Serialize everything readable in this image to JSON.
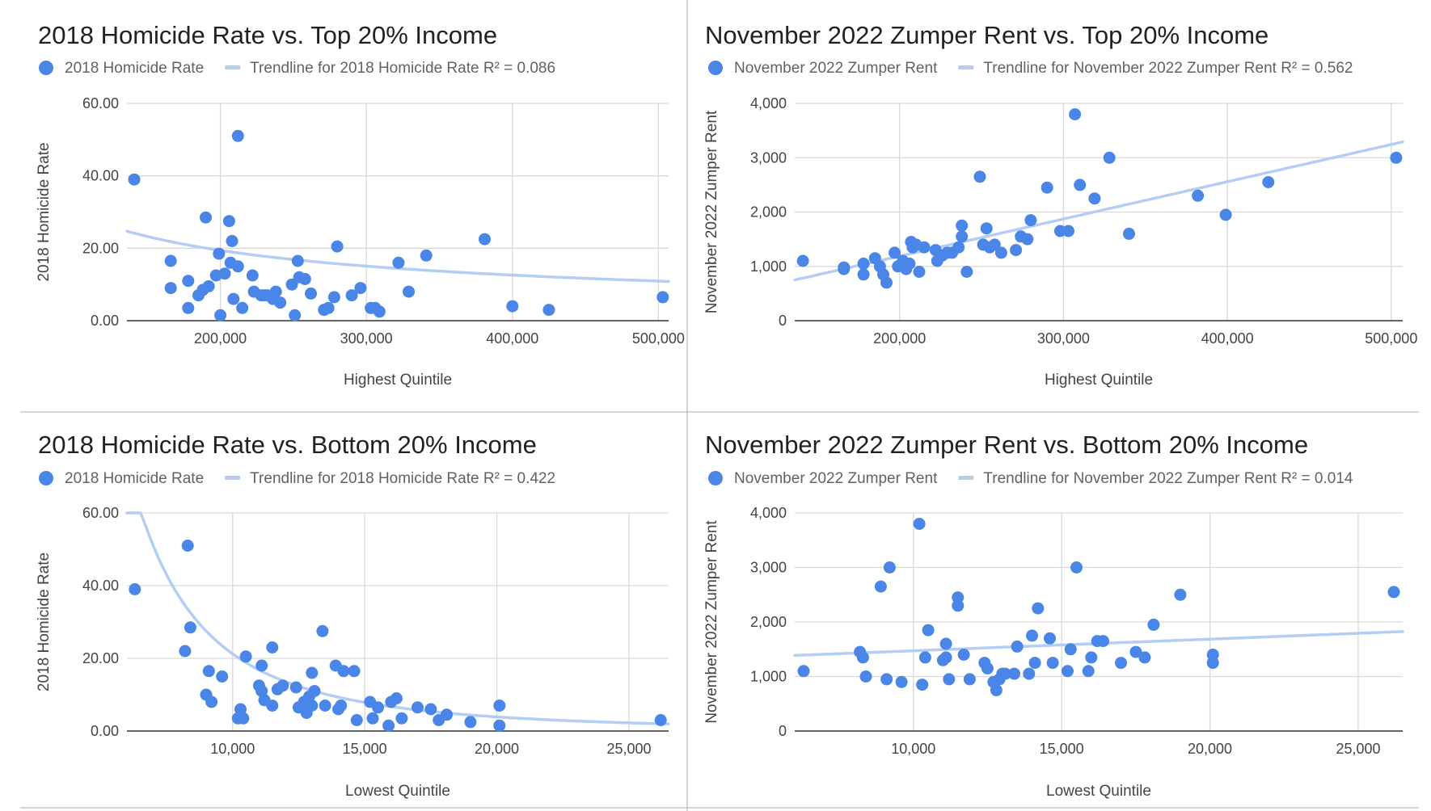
{
  "colors": {
    "point": "#4a86e8",
    "trend": "#b3cdf5"
  },
  "chart_data": [
    {
      "type": "scatter",
      "title": "2018 Homicide Rate vs. Top 20% Income",
      "xlabel": "Highest Quintile",
      "ylabel": "2018 Homicide Rate",
      "series_name": "2018 Homicide Rate",
      "trend_label": "Trendline for 2018 Homicide Rate R² = 0.086",
      "xlim": [
        136000,
        507000
      ],
      "ylim": [
        0,
        60
      ],
      "xticks": [
        200000,
        300000,
        400000,
        500000
      ],
      "xtick_labels": [
        "200,000",
        "300,000",
        "400,000",
        "500,000"
      ],
      "yticks": [
        0,
        20,
        40,
        60
      ],
      "ytick_labels": [
        "0.00",
        "20.00",
        "40.00",
        "60.00"
      ],
      "trend": {
        "kind": "power",
        "a": 40430,
        "b": -0.626
      },
      "points": [
        [
          141000,
          39
        ],
        [
          166000,
          16.5
        ],
        [
          166000,
          9
        ],
        [
          178000,
          3.5
        ],
        [
          178000,
          11
        ],
        [
          185000,
          7
        ],
        [
          188000,
          8.5
        ],
        [
          190000,
          28.5
        ],
        [
          192000,
          9.5
        ],
        [
          197000,
          12.5
        ],
        [
          199000,
          18.5
        ],
        [
          200000,
          1.5
        ],
        [
          203000,
          13
        ],
        [
          206000,
          27.5
        ],
        [
          207000,
          16
        ],
        [
          208000,
          22
        ],
        [
          209000,
          6
        ],
        [
          212000,
          51
        ],
        [
          212000,
          15
        ],
        [
          215000,
          3.5
        ],
        [
          222000,
          12.5
        ],
        [
          223000,
          8
        ],
        [
          228000,
          7
        ],
        [
          230000,
          7
        ],
        [
          232000,
          7
        ],
        [
          236000,
          6
        ],
        [
          238000,
          8
        ],
        [
          241000,
          5
        ],
        [
          249000,
          10
        ],
        [
          251000,
          1.5
        ],
        [
          253000,
          16.5
        ],
        [
          254000,
          12
        ],
        [
          258000,
          11.5
        ],
        [
          262000,
          7.5
        ],
        [
          271000,
          3
        ],
        [
          274000,
          3.5
        ],
        [
          278000,
          6.5
        ],
        [
          280000,
          20.5
        ],
        [
          290000,
          7
        ],
        [
          296000,
          9
        ],
        [
          303000,
          3.5
        ],
        [
          306000,
          3.5
        ],
        [
          309000,
          2.5
        ],
        [
          322000,
          16
        ],
        [
          329000,
          8
        ],
        [
          341000,
          18
        ],
        [
          381000,
          22.5
        ],
        [
          400000,
          4
        ],
        [
          425000,
          3
        ],
        [
          503000,
          6.5
        ]
      ]
    },
    {
      "type": "scatter",
      "title": "November 2022 Zumper Rent vs. Top 20% Income",
      "xlabel": "Highest Quintile",
      "ylabel": "November 2022 Zumper Rent",
      "series_name": "November 2022 Zumper Rent",
      "trend_label": "Trendline for November 2022 Zumper Rent R² = 0.562",
      "xlim": [
        136000,
        507000
      ],
      "ylim": [
        0,
        4000
      ],
      "xticks": [
        200000,
        300000,
        400000,
        500000
      ],
      "xtick_labels": [
        "200,000",
        "300,000",
        "400,000",
        "500,000"
      ],
      "yticks": [
        0,
        1000,
        2000,
        3000,
        4000
      ],
      "ytick_labels": [
        "0",
        "1,000",
        "2,000",
        "3,000",
        "4,000"
      ],
      "trend": {
        "kind": "linear",
        "slope": 0.006852,
        "intercept": -183
      },
      "points": [
        [
          141000,
          1100
        ],
        [
          166000,
          950
        ],
        [
          166000,
          980
        ],
        [
          178000,
          1050
        ],
        [
          178000,
          850
        ],
        [
          185000,
          1150
        ],
        [
          188000,
          1000
        ],
        [
          190000,
          850
        ],
        [
          192000,
          700
        ],
        [
          197000,
          1250
        ],
        [
          199000,
          1000
        ],
        [
          202000,
          1100
        ],
        [
          204000,
          950
        ],
        [
          206000,
          1050
        ],
        [
          207000,
          1450
        ],
        [
          208000,
          1350
        ],
        [
          210000,
          1400
        ],
        [
          212000,
          900
        ],
        [
          215000,
          1350
        ],
        [
          222000,
          1300
        ],
        [
          223000,
          1100
        ],
        [
          226000,
          1200
        ],
        [
          229000,
          1250
        ],
        [
          232000,
          1250
        ],
        [
          236000,
          1350
        ],
        [
          238000,
          1550
        ],
        [
          238000,
          1750
        ],
        [
          241000,
          900
        ],
        [
          249000,
          2650
        ],
        [
          251000,
          1400
        ],
        [
          253000,
          1700
        ],
        [
          255000,
          1350
        ],
        [
          258000,
          1400
        ],
        [
          262000,
          1250
        ],
        [
          271000,
          1300
        ],
        [
          274000,
          1550
        ],
        [
          278000,
          1500
        ],
        [
          280000,
          1850
        ],
        [
          290000,
          2450
        ],
        [
          298000,
          1650
        ],
        [
          303000,
          1650
        ],
        [
          307000,
          3800
        ],
        [
          310000,
          2500
        ],
        [
          319000,
          2250
        ],
        [
          328000,
          3000
        ],
        [
          340000,
          1600
        ],
        [
          382000,
          2300
        ],
        [
          399000,
          1950
        ],
        [
          425000,
          2550
        ],
        [
          503000,
          3000
        ]
      ]
    },
    {
      "type": "scatter",
      "title": "2018 Homicide Rate vs. Bottom 20% Income",
      "xlabel": "Lowest Quintile",
      "ylabel": "2018 Homicide Rate",
      "series_name": "2018 Homicide Rate",
      "trend_label": "Trendline for 2018 Homicide Rate R² = 0.422",
      "xlim": [
        6000,
        26500
      ],
      "ylim": [
        0,
        60
      ],
      "xticks": [
        10000,
        15000,
        20000,
        25000
      ],
      "xtick_labels": [
        "10,000",
        "15,000",
        "20,000",
        "25,000"
      ],
      "yticks": [
        0,
        20,
        40,
        60
      ],
      "ytick_labels": [
        "0.00",
        "20.00",
        "40.00",
        "60.00"
      ],
      "trend": {
        "kind": "power",
        "a": 134000000000.0,
        "b": -2.45
      },
      "points": [
        [
          6300,
          39
        ],
        [
          8200,
          22
        ],
        [
          8300,
          51
        ],
        [
          8400,
          28.5
        ],
        [
          9000,
          10
        ],
        [
          9100,
          16.5
        ],
        [
          9200,
          8
        ],
        [
          9600,
          15
        ],
        [
          10200,
          3.5
        ],
        [
          10300,
          6
        ],
        [
          10400,
          3.5
        ],
        [
          10500,
          20.5
        ],
        [
          11000,
          12.5
        ],
        [
          11100,
          11
        ],
        [
          11100,
          18
        ],
        [
          11200,
          8.5
        ],
        [
          11500,
          7
        ],
        [
          11500,
          23
        ],
        [
          11700,
          11.5
        ],
        [
          11900,
          12.5
        ],
        [
          12400,
          12
        ],
        [
          12500,
          6.5
        ],
        [
          12700,
          8
        ],
        [
          12800,
          5
        ],
        [
          12900,
          9.5
        ],
        [
          13000,
          7
        ],
        [
          13000,
          16
        ],
        [
          13100,
          11
        ],
        [
          13400,
          27.5
        ],
        [
          13500,
          7
        ],
        [
          13900,
          18
        ],
        [
          14000,
          6
        ],
        [
          14100,
          7
        ],
        [
          14200,
          16.5
        ],
        [
          14600,
          16.5
        ],
        [
          14700,
          3
        ],
        [
          15200,
          8
        ],
        [
          15300,
          3.5
        ],
        [
          15500,
          6.5
        ],
        [
          15900,
          1.5
        ],
        [
          16000,
          8
        ],
        [
          16200,
          9
        ],
        [
          16400,
          3.5
        ],
        [
          17000,
          6.5
        ],
        [
          17500,
          6
        ],
        [
          17800,
          3
        ],
        [
          18100,
          4.5
        ],
        [
          19000,
          2.5
        ],
        [
          20100,
          7
        ],
        [
          20100,
          1.5
        ],
        [
          26200,
          3
        ]
      ]
    },
    {
      "type": "scatter",
      "title": "November 2022 Zumper Rent vs. Bottom 20% Income",
      "xlabel": "Lowest Quintile",
      "ylabel": "November 2022 Zumper Rent",
      "series_name": "November 2022 Zumper Rent",
      "trend_label": "Trendline for November 2022 Zumper Rent R² = 0.014",
      "xlim": [
        6000,
        26500
      ],
      "ylim": [
        0,
        4000
      ],
      "xticks": [
        10000,
        15000,
        20000,
        25000
      ],
      "xtick_labels": [
        "10,000",
        "15,000",
        "20,000",
        "25,000"
      ],
      "yticks": [
        0,
        1000,
        2000,
        3000,
        4000
      ],
      "ytick_labels": [
        "0",
        "1,000",
        "2,000",
        "3,000",
        "4,000"
      ],
      "trend": {
        "kind": "linear",
        "slope": 0.02133,
        "intercept": 1259
      },
      "points": [
        [
          6300,
          1100
        ],
        [
          8200,
          1450
        ],
        [
          8300,
          1350
        ],
        [
          8400,
          1000
        ],
        [
          8900,
          2650
        ],
        [
          9100,
          950
        ],
        [
          9200,
          3000
        ],
        [
          9600,
          900
        ],
        [
          10200,
          3800
        ],
        [
          10300,
          850
        ],
        [
          10400,
          1350
        ],
        [
          10500,
          1850
        ],
        [
          11000,
          1300
        ],
        [
          11100,
          1350
        ],
        [
          11100,
          1600
        ],
        [
          11200,
          950
        ],
        [
          11500,
          2300
        ],
        [
          11500,
          2450
        ],
        [
          11700,
          1400
        ],
        [
          11900,
          950
        ],
        [
          12400,
          1250
        ],
        [
          12500,
          1150
        ],
        [
          12700,
          900
        ],
        [
          12800,
          750
        ],
        [
          12900,
          950
        ],
        [
          13000,
          1050
        ],
        [
          13100,
          1050
        ],
        [
          13400,
          1050
        ],
        [
          13500,
          1550
        ],
        [
          13900,
          1050
        ],
        [
          14000,
          1750
        ],
        [
          14100,
          1250
        ],
        [
          14200,
          2250
        ],
        [
          14600,
          1700
        ],
        [
          14700,
          1250
        ],
        [
          15200,
          1100
        ],
        [
          15300,
          1500
        ],
        [
          15500,
          3000
        ],
        [
          15900,
          1100
        ],
        [
          16000,
          1350
        ],
        [
          16200,
          1650
        ],
        [
          16400,
          1650
        ],
        [
          17000,
          1250
        ],
        [
          17500,
          1450
        ],
        [
          17800,
          1350
        ],
        [
          18100,
          1950
        ],
        [
          19000,
          2500
        ],
        [
          20100,
          1400
        ],
        [
          20100,
          1250
        ],
        [
          26200,
          2550
        ]
      ]
    }
  ]
}
